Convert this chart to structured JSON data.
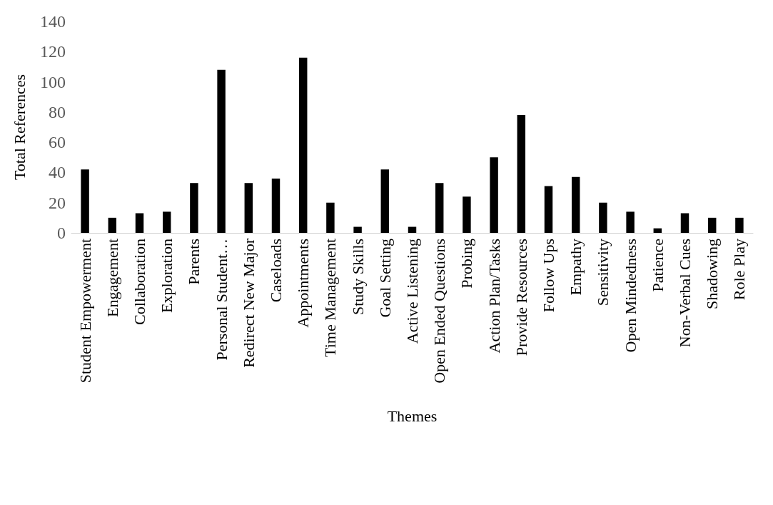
{
  "chart_data": {
    "type": "bar",
    "xlabel": "Themes",
    "ylabel": "Total References",
    "categories": [
      "Student Empowerment",
      "Engagement",
      "Collaboration",
      "Exploration",
      "Parents",
      "Personal Student…",
      "Redirect New Major",
      "Caseloads",
      "Appointments",
      "Time Management",
      "Study Skills",
      "Goal Setting",
      "Active Listening",
      "Open Ended Questions",
      "Probing",
      "Action Plan/Tasks",
      "Provide Resources",
      "Follow Ups",
      "Empathy",
      "Sensitivity",
      "Open Mindedness",
      "Patience",
      "Non-Verbal Cues",
      "Shadowing",
      "Role Play"
    ],
    "values": [
      42,
      10,
      13,
      14,
      33,
      108,
      33,
      36,
      116,
      20,
      4,
      42,
      4,
      33,
      24,
      50,
      78,
      31,
      37,
      20,
      14,
      3,
      13,
      10,
      10
    ],
    "color": "#000000",
    "ylim": [
      0,
      140
    ],
    "yticks": [
      0,
      20,
      40,
      60,
      80,
      100,
      120,
      140
    ],
    "grid": false
  }
}
